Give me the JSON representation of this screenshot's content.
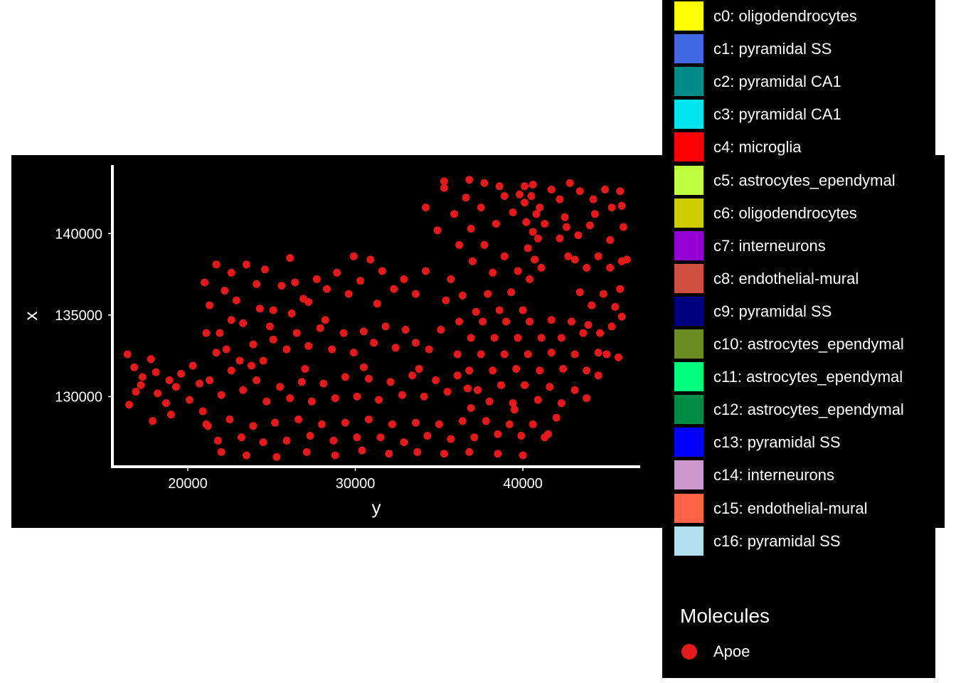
{
  "chart_data": {
    "type": "scatter",
    "title": "",
    "xlabel": "y",
    "ylabel": "x",
    "xlim": [
      15500,
      47000
    ],
    "ylim": [
      125700,
      144200
    ],
    "x_ticks": [
      20000,
      30000,
      40000
    ],
    "y_ticks": [
      130000,
      135000,
      140000
    ],
    "x_tick_labels": [
      "20000",
      "30000",
      "40000"
    ],
    "y_tick_labels": [
      "130000",
      "135000",
      "140000"
    ],
    "grid": false,
    "background": "#000000",
    "legend_position": "right",
    "cell_legend": [
      {
        "label": "c0: oligodendrocytes",
        "color": "#ffff00"
      },
      {
        "label": "c1: pyramidal SS",
        "color": "#4169e1"
      },
      {
        "label": "c2: pyramidal CA1",
        "color": "#008b8b"
      },
      {
        "label": "c3: pyramidal CA1",
        "color": "#00e5ee"
      },
      {
        "label": "c4: microglia",
        "color": "#ff0000"
      },
      {
        "label": "c5: astrocytes_ependymal",
        "color": "#c0ff3e"
      },
      {
        "label": "c6: oligodendrocytes",
        "color": "#cdcd00"
      },
      {
        "label": "c7: interneurons",
        "color": "#9400d3"
      },
      {
        "label": "c8: endothelial-mural",
        "color": "#cd5040"
      },
      {
        "label": "c9: pyramidal SS",
        "color": "#000080"
      },
      {
        "label": "c10: astrocytes_ependymal",
        "color": "#6b8e23"
      },
      {
        "label": "c11: astrocytes_ependymal",
        "color": "#00ff7f"
      },
      {
        "label": "c12: astrocytes_ependymal",
        "color": "#008b45"
      },
      {
        "label": "c13: pyramidal SS",
        "color": "#0000ff"
      },
      {
        "label": "c14: interneurons",
        "color": "#cd96cd"
      },
      {
        "label": "c15: endothelial-mural",
        "color": "#ff6347"
      },
      {
        "label": "c16: pyramidal SS",
        "color": "#b2dfee"
      }
    ],
    "molecule_legend_title": "Molecules",
    "series": [
      {
        "name": "Apoe",
        "color": "#e31a1c",
        "points": [
          [
            16400,
            132600
          ],
          [
            16800,
            131800
          ],
          [
            17300,
            131200
          ],
          [
            17800,
            132300
          ],
          [
            17200,
            130700
          ],
          [
            16500,
            129500
          ],
          [
            18200,
            130200
          ],
          [
            18700,
            129600
          ],
          [
            19300,
            130600
          ],
          [
            19600,
            131400
          ],
          [
            20100,
            129800
          ],
          [
            20300,
            131900
          ],
          [
            19000,
            128900
          ],
          [
            17900,
            128500
          ],
          [
            20900,
            129100
          ],
          [
            21200,
            128200
          ],
          [
            18900,
            131000
          ],
          [
            20700,
            130800
          ],
          [
            16900,
            130300
          ],
          [
            18100,
            131500
          ],
          [
            21000,
            137000
          ],
          [
            21700,
            138100
          ],
          [
            21300,
            135600
          ],
          [
            22200,
            136500
          ],
          [
            21900,
            133900
          ],
          [
            22600,
            137600
          ],
          [
            23500,
            138100
          ],
          [
            22900,
            135900
          ],
          [
            23300,
            134500
          ],
          [
            24100,
            136900
          ],
          [
            24600,
            137800
          ],
          [
            25100,
            135300
          ],
          [
            25600,
            136800
          ],
          [
            26100,
            138500
          ],
          [
            26400,
            137000
          ],
          [
            26900,
            136000
          ],
          [
            27700,
            137200
          ],
          [
            28300,
            136600
          ],
          [
            28900,
            137600
          ],
          [
            29600,
            136300
          ],
          [
            30300,
            137100
          ],
          [
            30900,
            138400
          ],
          [
            31600,
            137700
          ],
          [
            32300,
            136600
          ],
          [
            32900,
            137200
          ],
          [
            33600,
            136300
          ],
          [
            34200,
            137700
          ],
          [
            24300,
            135400
          ],
          [
            27200,
            135800
          ],
          [
            29900,
            138600
          ],
          [
            21100,
            133900
          ],
          [
            21700,
            132700
          ],
          [
            22300,
            132900
          ],
          [
            23100,
            132200
          ],
          [
            23900,
            133200
          ],
          [
            24500,
            132200
          ],
          [
            25100,
            133500
          ],
          [
            25900,
            132900
          ],
          [
            26500,
            133900
          ],
          [
            27200,
            133100
          ],
          [
            27900,
            134200
          ],
          [
            28600,
            132900
          ],
          [
            29300,
            133900
          ],
          [
            29900,
            132700
          ],
          [
            30500,
            134000
          ],
          [
            31100,
            133300
          ],
          [
            31800,
            134300
          ],
          [
            32400,
            133000
          ],
          [
            33000,
            134100
          ],
          [
            33600,
            133300
          ],
          [
            34400,
            132900
          ],
          [
            35100,
            134100
          ],
          [
            22600,
            134700
          ],
          [
            24900,
            134300
          ],
          [
            28200,
            134700
          ],
          [
            31300,
            135700
          ],
          [
            35400,
            135900
          ],
          [
            26200,
            135100
          ],
          [
            21300,
            131000
          ],
          [
            22000,
            130100
          ],
          [
            22600,
            131600
          ],
          [
            23300,
            130400
          ],
          [
            24100,
            131000
          ],
          [
            24700,
            129700
          ],
          [
            25500,
            130600
          ],
          [
            26100,
            129900
          ],
          [
            26800,
            130900
          ],
          [
            27400,
            129700
          ],
          [
            28100,
            130800
          ],
          [
            28800,
            129900
          ],
          [
            29400,
            131200
          ],
          [
            30100,
            130000
          ],
          [
            30800,
            131100
          ],
          [
            31400,
            129800
          ],
          [
            32100,
            130900
          ],
          [
            32800,
            130100
          ],
          [
            33400,
            131300
          ],
          [
            34100,
            130000
          ],
          [
            34800,
            131000
          ],
          [
            35500,
            130300
          ],
          [
            36100,
            131300
          ],
          [
            23800,
            131900
          ],
          [
            27000,
            131700
          ],
          [
            30500,
            131800
          ],
          [
            33800,
            131700
          ],
          [
            36700,
            130500
          ],
          [
            21100,
            128300
          ],
          [
            21800,
            127300
          ],
          [
            22500,
            128600
          ],
          [
            23200,
            127500
          ],
          [
            23900,
            128200
          ],
          [
            24500,
            127200
          ],
          [
            25200,
            128400
          ],
          [
            25900,
            127300
          ],
          [
            26600,
            128600
          ],
          [
            27300,
            127600
          ],
          [
            28000,
            128300
          ],
          [
            28700,
            127300
          ],
          [
            29400,
            128400
          ],
          [
            30100,
            127500
          ],
          [
            30800,
            128600
          ],
          [
            31500,
            127500
          ],
          [
            32200,
            128300
          ],
          [
            32900,
            127200
          ],
          [
            33600,
            128400
          ],
          [
            34300,
            127600
          ],
          [
            35000,
            128300
          ],
          [
            35700,
            127400
          ],
          [
            22000,
            126600
          ],
          [
            23500,
            126400
          ],
          [
            25300,
            126300
          ],
          [
            27100,
            126600
          ],
          [
            28800,
            126400
          ],
          [
            30400,
            126700
          ],
          [
            32000,
            126500
          ],
          [
            33700,
            126600
          ],
          [
            35300,
            126500
          ],
          [
            36800,
            126600
          ],
          [
            38500,
            126500
          ],
          [
            40000,
            126400
          ],
          [
            41500,
            127700
          ],
          [
            34200,
            141600
          ],
          [
            34900,
            140200
          ],
          [
            35300,
            142800
          ],
          [
            35900,
            141200
          ],
          [
            36600,
            142200
          ],
          [
            36200,
            139300
          ],
          [
            36900,
            140300
          ],
          [
            37500,
            141600
          ],
          [
            37000,
            138300
          ],
          [
            37700,
            139300
          ],
          [
            38400,
            140600
          ],
          [
            38900,
            142300
          ],
          [
            39400,
            141300
          ],
          [
            38200,
            137600
          ],
          [
            38900,
            138600
          ],
          [
            35700,
            137200
          ],
          [
            36400,
            136200
          ],
          [
            37200,
            135200
          ],
          [
            37900,
            136300
          ],
          [
            38600,
            135300
          ],
          [
            39300,
            136400
          ],
          [
            40000,
            135300
          ],
          [
            39700,
            137700
          ],
          [
            35300,
            143200
          ],
          [
            36800,
            143300
          ],
          [
            37700,
            143100
          ],
          [
            38600,
            142900
          ],
          [
            39800,
            142400
          ],
          [
            40100,
            141900
          ],
          [
            40500,
            142300
          ],
          [
            40800,
            141200
          ],
          [
            40200,
            140700
          ],
          [
            40600,
            140100
          ],
          [
            40900,
            139700
          ],
          [
            40300,
            139100
          ],
          [
            40700,
            138400
          ],
          [
            41100,
            137900
          ],
          [
            40400,
            137200
          ],
          [
            41000,
            141600
          ],
          [
            41300,
            140600
          ],
          [
            40100,
            142900
          ],
          [
            40600,
            143000
          ],
          [
            41700,
            142700
          ],
          [
            42200,
            142100
          ],
          [
            42500,
            141000
          ],
          [
            42200,
            139700
          ],
          [
            42700,
            138600
          ],
          [
            36200,
            134600
          ],
          [
            36900,
            133600
          ],
          [
            37600,
            134600
          ],
          [
            38300,
            133600
          ],
          [
            39000,
            134600
          ],
          [
            39700,
            133600
          ],
          [
            40400,
            134600
          ],
          [
            41100,
            133600
          ],
          [
            41700,
            134700
          ],
          [
            42300,
            133600
          ],
          [
            42900,
            134600
          ],
          [
            43600,
            133900
          ],
          [
            36100,
            132600
          ],
          [
            36800,
            131600
          ],
          [
            37500,
            132600
          ],
          [
            38200,
            131600
          ],
          [
            38900,
            132600
          ],
          [
            39600,
            131700
          ],
          [
            40300,
            132600
          ],
          [
            41000,
            131600
          ],
          [
            41700,
            132700
          ],
          [
            42400,
            131700
          ],
          [
            43100,
            132600
          ],
          [
            43800,
            131600
          ],
          [
            44500,
            132700
          ],
          [
            37300,
            130400
          ],
          [
            38000,
            129700
          ],
          [
            38700,
            130700
          ],
          [
            39400,
            129600
          ],
          [
            40100,
            130700
          ],
          [
            40900,
            129800
          ],
          [
            41600,
            130600
          ],
          [
            42300,
            129600
          ],
          [
            43100,
            130400
          ],
          [
            43800,
            129900
          ],
          [
            44500,
            131300
          ],
          [
            36400,
            128500
          ],
          [
            37100,
            127500
          ],
          [
            37800,
            128500
          ],
          [
            38500,
            127700
          ],
          [
            39200,
            128300
          ],
          [
            39900,
            127600
          ],
          [
            40600,
            128300
          ],
          [
            41300,
            127500
          ],
          [
            36900,
            129300
          ],
          [
            39500,
            129200
          ],
          [
            42000,
            128700
          ],
          [
            42600,
            140400
          ],
          [
            43300,
            139900
          ],
          [
            44000,
            140500
          ],
          [
            43100,
            138400
          ],
          [
            43800,
            137900
          ],
          [
            44500,
            138600
          ],
          [
            45200,
            137900
          ],
          [
            45900,
            138300
          ],
          [
            43400,
            136400
          ],
          [
            44100,
            135600
          ],
          [
            44800,
            136300
          ],
          [
            45500,
            135500
          ],
          [
            45800,
            136600
          ],
          [
            43900,
            134400
          ],
          [
            44600,
            133900
          ],
          [
            45300,
            134300
          ],
          [
            45900,
            134900
          ],
          [
            45000,
            132600
          ],
          [
            45700,
            132400
          ],
          [
            46200,
            138400
          ],
          [
            46000,
            140400
          ],
          [
            45300,
            141600
          ],
          [
            44900,
            142700
          ],
          [
            45800,
            142600
          ],
          [
            44200,
            142100
          ],
          [
            43400,
            142600
          ],
          [
            42800,
            143100
          ],
          [
            45200,
            139600
          ],
          [
            44300,
            141200
          ],
          [
            45900,
            141700
          ]
        ]
      }
    ]
  }
}
